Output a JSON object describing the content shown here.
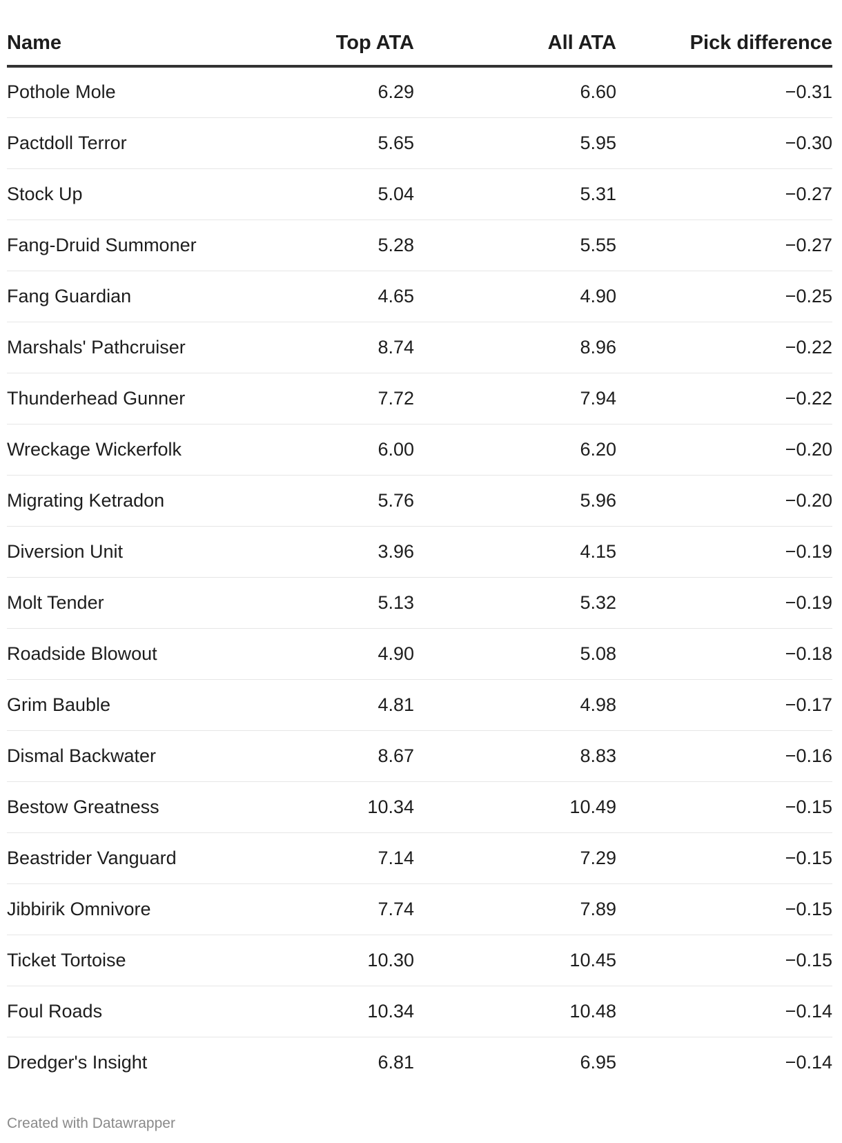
{
  "chart_data": {
    "type": "table",
    "columns": [
      "Name",
      "Top ATA",
      "All ATA",
      "Pick difference"
    ],
    "rows": [
      [
        "Pothole Mole",
        "6.29",
        "6.60",
        "−0.31"
      ],
      [
        "Pactdoll Terror",
        "5.65",
        "5.95",
        "−0.30"
      ],
      [
        "Stock Up",
        "5.04",
        "5.31",
        "−0.27"
      ],
      [
        "Fang-Druid Summoner",
        "5.28",
        "5.55",
        "−0.27"
      ],
      [
        "Fang Guardian",
        "4.65",
        "4.90",
        "−0.25"
      ],
      [
        "Marshals' Pathcruiser",
        "8.74",
        "8.96",
        "−0.22"
      ],
      [
        "Thunderhead Gunner",
        "7.72",
        "7.94",
        "−0.22"
      ],
      [
        "Wreckage Wickerfolk",
        "6.00",
        "6.20",
        "−0.20"
      ],
      [
        "Migrating Ketradon",
        "5.76",
        "5.96",
        "−0.20"
      ],
      [
        "Diversion Unit",
        "3.96",
        "4.15",
        "−0.19"
      ],
      [
        "Molt Tender",
        "5.13",
        "5.32",
        "−0.19"
      ],
      [
        "Roadside Blowout",
        "4.90",
        "5.08",
        "−0.18"
      ],
      [
        "Grim Bauble",
        "4.81",
        "4.98",
        "−0.17"
      ],
      [
        "Dismal Backwater",
        "8.67",
        "8.83",
        "−0.16"
      ],
      [
        "Bestow Greatness",
        "10.34",
        "10.49",
        "−0.15"
      ],
      [
        "Beastrider Vanguard",
        "7.14",
        "7.29",
        "−0.15"
      ],
      [
        "Jibbirik Omnivore",
        "7.74",
        "7.89",
        "−0.15"
      ],
      [
        "Ticket Tortoise",
        "10.30",
        "10.45",
        "−0.15"
      ],
      [
        "Foul Roads",
        "10.34",
        "10.48",
        "−0.14"
      ],
      [
        "Dredger's Insight",
        "6.81",
        "6.95",
        "−0.14"
      ]
    ]
  },
  "footer": {
    "credit": "Created with Datawrapper"
  },
  "colors": {
    "text": "#1d1d1d",
    "header_rule": "#333333",
    "row_rule": "#e6e6e6",
    "footer_text": "#8a8a8a"
  }
}
